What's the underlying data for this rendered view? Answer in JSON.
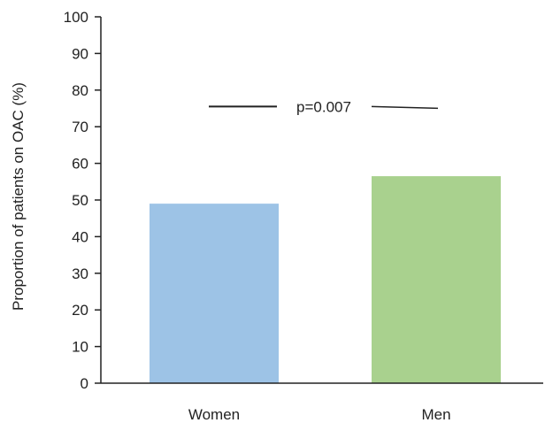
{
  "chart_data": {
    "type": "bar",
    "title": "",
    "xlabel": "",
    "ylabel": "Proportion of patients on OAC (%)",
    "categories": [
      "Women",
      "Men"
    ],
    "values": [
      49,
      56.5
    ],
    "bar_colors": [
      "#9dc3e6",
      "#a9d18e"
    ],
    "ylim": [
      0,
      100
    ],
    "yticks": [
      0,
      10,
      20,
      30,
      40,
      50,
      60,
      70,
      80,
      90,
      100
    ],
    "grid": false,
    "legend": "none",
    "annotation": {
      "text": "p=0.007",
      "y": 75.5
    }
  }
}
